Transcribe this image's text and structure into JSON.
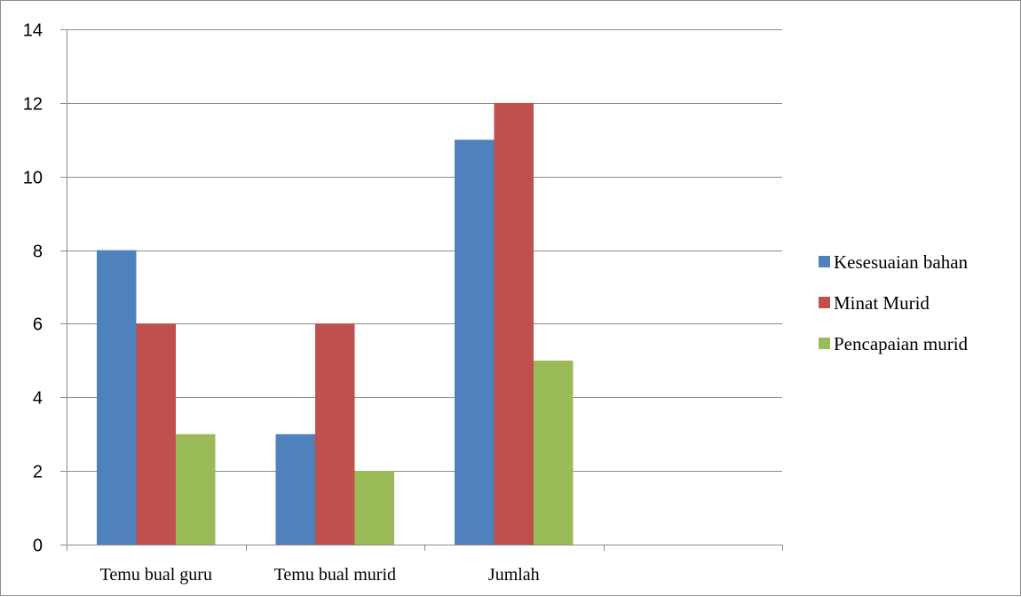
{
  "chart_data": {
    "type": "bar",
    "categories": [
      "Temu bual guru",
      "Temu bual murid",
      "Jumlah",
      ""
    ],
    "series": [
      {
        "name": "Kesesuaian bahan",
        "values": [
          8,
          3,
          11,
          null
        ],
        "color": "#4f81bd"
      },
      {
        "name": "Minat Murid",
        "values": [
          6,
          6,
          12,
          null
        ],
        "color": "#c0504d"
      },
      {
        "name": "Pencapaian murid",
        "values": [
          3,
          2,
          5,
          null
        ],
        "color": "#9bbb59"
      }
    ],
    "ylim": [
      0,
      14
    ],
    "yticks": [
      "0",
      "2",
      "4",
      "6",
      "8",
      "10",
      "12",
      "14"
    ],
    "grid": true,
    "legend_position": "right",
    "title": "",
    "xlabel": "",
    "ylabel": ""
  }
}
